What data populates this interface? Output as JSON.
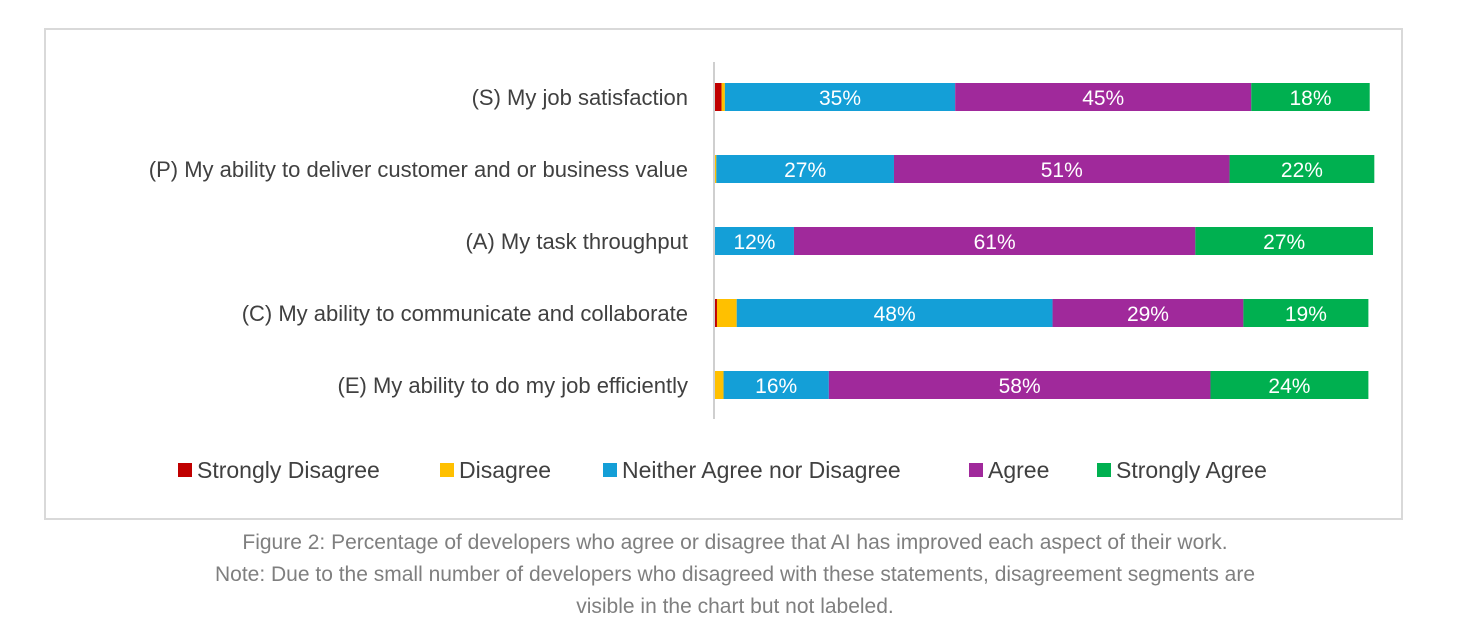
{
  "chart_data": {
    "type": "bar",
    "orientation": "horizontal",
    "stacked": true,
    "categories": [
      "(S) My job satisfaction",
      "(P) My ability to deliver customer and or business value",
      "(A) My task throughput",
      "(C) My ability to communicate and collaborate",
      "(E) My ability to do my job efficiently"
    ],
    "series": [
      {
        "name": "Strongly Disagree",
        "color": "#c00000",
        "values": [
          1,
          0,
          0,
          0.3,
          0
        ]
      },
      {
        "name": "Disagree",
        "color": "#ffc000",
        "values": [
          0.5,
          0.2,
          0,
          3,
          1.3
        ]
      },
      {
        "name": "Neither Agree nor Disagree",
        "color": "#149fd7",
        "values": [
          35,
          27,
          12,
          48,
          16
        ]
      },
      {
        "name": "Agree",
        "color": "#a0299b",
        "values": [
          45,
          51,
          61,
          29,
          58
        ]
      },
      {
        "name": "Strongly Agree",
        "color": "#00b050",
        "values": [
          18,
          22,
          27,
          19,
          24
        ]
      }
    ],
    "labeled_series": [
      "Neither Agree nor Disagree",
      "Agree",
      "Strongly Agree"
    ],
    "label_format": "{v}%",
    "xlim": [
      0,
      100
    ],
    "legend_position": "bottom",
    "grid": false
  },
  "caption": {
    "line1": "Figure 2: Percentage of developers who agree or disagree that AI has improved each aspect of their work.",
    "line2": "Note: Due to the small number of developers who disagreed with these statements, disagreement segments are",
    "line3": "visible in the chart but not labeled."
  }
}
